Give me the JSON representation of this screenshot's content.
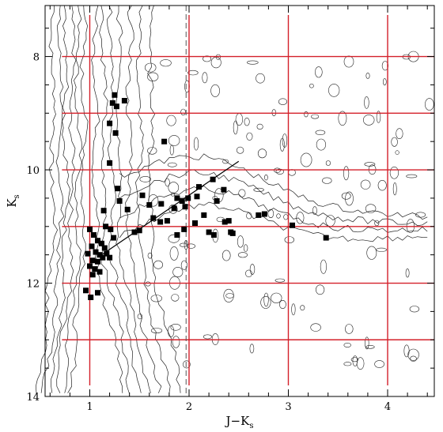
{
  "chart_data": {
    "type": "scatter",
    "xlabel": "J−K",
    "xlabel_sub": "s",
    "ylabel": "K",
    "ylabel_sub": "s",
    "xlim": [
      0.55,
      4.47
    ],
    "ylim": [
      14.0,
      7.1
    ],
    "y_inverted": true,
    "x_ticks": [
      1,
      2,
      3,
      4
    ],
    "y_ticks": [
      8,
      10,
      12,
      14
    ],
    "x_minor_step": 0.2,
    "y_minor_step": 0.5,
    "grid": {
      "color": "#d4202a",
      "vertical_x": [
        1,
        2,
        3,
        4
      ],
      "horizontal_y": [
        8,
        9,
        10,
        11,
        12,
        13
      ],
      "horizontal_xrange": [
        0.55,
        4.47
      ]
    },
    "dashed_line_x": 1.97,
    "fit_line": {
      "x": [
        1.12,
        2.5
      ],
      "y": [
        11.5,
        9.85
      ]
    },
    "squares": [
      {
        "x": 1.25,
        "y": 8.68
      },
      {
        "x": 1.35,
        "y": 8.78
      },
      {
        "x": 1.23,
        "y": 8.82
      },
      {
        "x": 1.27,
        "y": 8.88
      },
      {
        "x": 1.2,
        "y": 9.18
      },
      {
        "x": 1.26,
        "y": 9.35
      },
      {
        "x": 1.75,
        "y": 9.5
      },
      {
        "x": 1.2,
        "y": 9.88
      },
      {
        "x": 2.24,
        "y": 10.17
      },
      {
        "x": 1.28,
        "y": 10.33
      },
      {
        "x": 2.1,
        "y": 10.3
      },
      {
        "x": 2.35,
        "y": 10.35
      },
      {
        "x": 2.28,
        "y": 10.55
      },
      {
        "x": 2.08,
        "y": 10.47
      },
      {
        "x": 1.53,
        "y": 10.45
      },
      {
        "x": 1.88,
        "y": 10.5
      },
      {
        "x": 1.93,
        "y": 10.55
      },
      {
        "x": 1.99,
        "y": 10.5
      },
      {
        "x": 1.3,
        "y": 10.55
      },
      {
        "x": 1.6,
        "y": 10.62
      },
      {
        "x": 1.85,
        "y": 10.68
      },
      {
        "x": 1.72,
        "y": 10.6
      },
      {
        "x": 1.38,
        "y": 10.7
      },
      {
        "x": 1.64,
        "y": 10.85
      },
      {
        "x": 1.78,
        "y": 10.9
      },
      {
        "x": 1.71,
        "y": 10.92
      },
      {
        "x": 1.96,
        "y": 10.65
      },
      {
        "x": 2.15,
        "y": 10.8
      },
      {
        "x": 2.06,
        "y": 10.94
      },
      {
        "x": 2.36,
        "y": 10.92
      },
      {
        "x": 2.4,
        "y": 10.9
      },
      {
        "x": 2.42,
        "y": 11.1
      },
      {
        "x": 2.76,
        "y": 10.78
      },
      {
        "x": 2.7,
        "y": 10.8
      },
      {
        "x": 2.44,
        "y": 11.12
      },
      {
        "x": 2.2,
        "y": 11.1
      },
      {
        "x": 2.25,
        "y": 11.15
      },
      {
        "x": 1.95,
        "y": 11.05
      },
      {
        "x": 1.88,
        "y": 11.15
      },
      {
        "x": 1.5,
        "y": 11.07
      },
      {
        "x": 1.45,
        "y": 11.1
      },
      {
        "x": 1.14,
        "y": 10.72
      },
      {
        "x": 1.16,
        "y": 11.0
      },
      {
        "x": 1.21,
        "y": 11.05
      },
      {
        "x": 1.24,
        "y": 11.2
      },
      {
        "x": 1.0,
        "y": 11.05
      },
      {
        "x": 1.04,
        "y": 11.15
      },
      {
        "x": 1.08,
        "y": 11.25
      },
      {
        "x": 1.12,
        "y": 11.3
      },
      {
        "x": 1.02,
        "y": 11.35
      },
      {
        "x": 1.15,
        "y": 11.38
      },
      {
        "x": 0.98,
        "y": 11.48
      },
      {
        "x": 1.06,
        "y": 11.45
      },
      {
        "x": 1.1,
        "y": 11.5
      },
      {
        "x": 1.13,
        "y": 11.55
      },
      {
        "x": 1.03,
        "y": 11.6
      },
      {
        "x": 1.08,
        "y": 11.62
      },
      {
        "x": 1.17,
        "y": 11.48
      },
      {
        "x": 1.2,
        "y": 11.55
      },
      {
        "x": 1.05,
        "y": 11.75
      },
      {
        "x": 1.1,
        "y": 11.8
      },
      {
        "x": 1.03,
        "y": 11.85
      },
      {
        "x": 1.0,
        "y": 11.7
      },
      {
        "x": 0.96,
        "y": 12.13
      },
      {
        "x": 1.01,
        "y": 12.25
      },
      {
        "x": 1.08,
        "y": 12.17
      },
      {
        "x": 3.04,
        "y": 10.98
      },
      {
        "x": 3.38,
        "y": 11.2
      }
    ]
  }
}
